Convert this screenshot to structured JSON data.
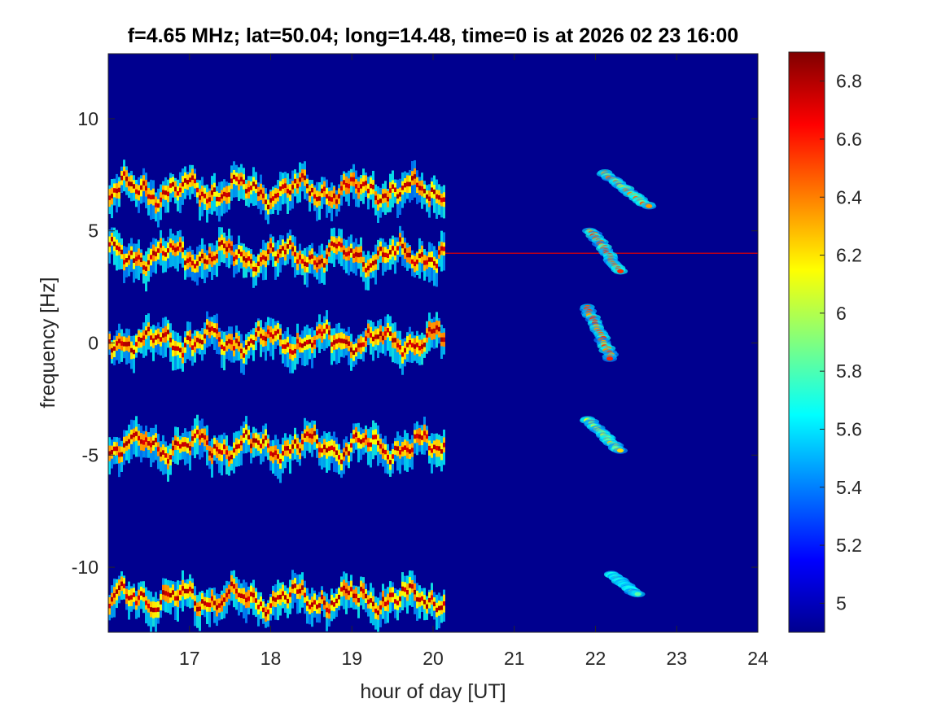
{
  "chart_data": {
    "type": "heatmap",
    "title": "f=4.65 MHz;  lat=50.04; long=14.48, time=0 is at 2026 02 23 16:00",
    "xlabel": "hour of day [UT]",
    "ylabel": "frequency [Hz]",
    "xlim": [
      16.0,
      24.0
    ],
    "ylim": [
      -12.9,
      12.9
    ],
    "xticks": [
      17,
      18,
      19,
      20,
      21,
      22,
      23,
      24
    ],
    "xtick_labels": [
      "17",
      "18",
      "19",
      "20",
      "21",
      "22",
      "23",
      "24"
    ],
    "yticks": [
      10,
      5,
      0,
      -5,
      -10
    ],
    "ytick_labels": [
      "10",
      "5",
      "0",
      "-5",
      "-10"
    ],
    "colorbar": {
      "colormap": "jet",
      "range": [
        4.9,
        6.9
      ],
      "ticks": [
        6.8,
        6.6,
        6.4,
        6.2,
        6,
        5.8,
        5.6,
        5.4,
        5.2,
        5
      ],
      "tick_labels": [
        "6.8",
        "6.6",
        "6.4",
        "6.2",
        "6",
        "5.8",
        "5.6",
        "5.4",
        "5.2",
        "5"
      ]
    },
    "background_value": 4.95,
    "echo_traces": [
      {
        "center_hz": 6.8,
        "start_hour": 16.0,
        "end_hour": 20.15,
        "peak_value": 6.85
      },
      {
        "center_hz": 3.9,
        "start_hour": 16.0,
        "end_hour": 20.15,
        "peak_value": 6.85
      },
      {
        "center_hz": 0.1,
        "start_hour": 16.0,
        "end_hour": 20.15,
        "peak_value": 6.85
      },
      {
        "center_hz": -4.6,
        "start_hour": 16.0,
        "end_hour": 20.15,
        "peak_value": 6.85
      },
      {
        "center_hz": -11.4,
        "start_hour": 16.0,
        "end_hour": 20.15,
        "peak_value": 6.85
      }
    ],
    "constant_line": {
      "hz": 4.0,
      "start_hour": 20.15,
      "end_hour": 24.0,
      "value": 6.7
    },
    "late_streaks": [
      {
        "x0": 22.1,
        "y0": 7.6,
        "x1": 22.65,
        "y1": 6.1,
        "value": 6.5
      },
      {
        "x0": 21.95,
        "y0": 5.0,
        "x1": 22.3,
        "y1": 3.2,
        "value": 6.6
      },
      {
        "x0": 21.9,
        "y0": 1.6,
        "x1": 22.2,
        "y1": -0.7,
        "value": 6.6
      },
      {
        "x0": 21.9,
        "y0": -3.4,
        "x1": 22.3,
        "y1": -4.8,
        "value": 6.3
      },
      {
        "x0": 22.2,
        "y0": -10.3,
        "x1": 22.5,
        "y1": -11.2,
        "value": 5.9
      }
    ]
  }
}
